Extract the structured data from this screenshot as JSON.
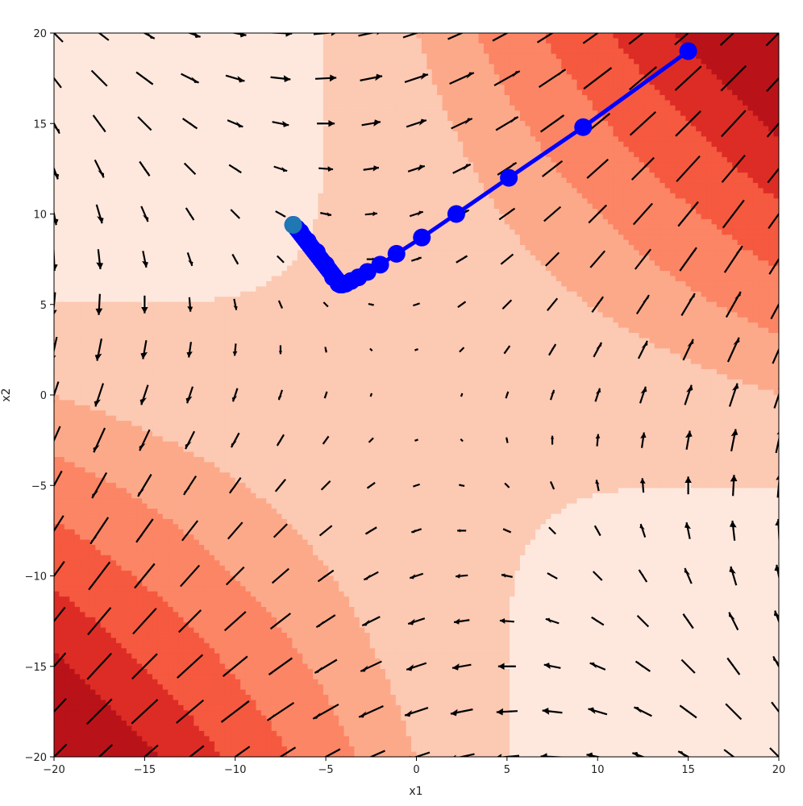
{
  "chart_data": {
    "type": "contour-quiver-trajectory",
    "xlabel": "x1",
    "ylabel": "x2",
    "xlim": [
      -20,
      20
    ],
    "ylim": [
      -20,
      20
    ],
    "xticks": [
      -20,
      -15,
      -10,
      -5,
      0,
      5,
      10,
      15,
      20
    ],
    "yticks": [
      -20,
      -15,
      -10,
      -5,
      0,
      5,
      10,
      15,
      20
    ],
    "xtick_labels": [
      "−20",
      "−15",
      "−10",
      "−5",
      "0",
      "5",
      "10",
      "15",
      "20"
    ],
    "ytick_labels": [
      "−20",
      "−15",
      "−10",
      "−5",
      "0",
      "5",
      "10",
      "15",
      "20"
    ],
    "grid": false,
    "colormap": "Reds",
    "contour_colors": [
      "#fee8de",
      "#fcc9b3",
      "#fca98a",
      "#fb8565",
      "#f5593f",
      "#dd2c25",
      "#b91319"
    ],
    "trajectory": {
      "color": "#0000ff",
      "start_marker_color": "#1f77b4",
      "points": [
        [
          15.0,
          19.0
        ],
        [
          9.2,
          14.8
        ],
        [
          5.1,
          12.0
        ],
        [
          2.2,
          10.0
        ],
        [
          0.3,
          8.7
        ],
        [
          -1.1,
          7.8
        ],
        [
          -2.0,
          7.2
        ],
        [
          -2.7,
          6.8
        ],
        [
          -3.2,
          6.5
        ],
        [
          -3.6,
          6.3
        ],
        [
          -3.9,
          6.15
        ],
        [
          -4.1,
          6.1
        ],
        [
          -4.3,
          6.15
        ],
        [
          -4.6,
          6.5
        ],
        [
          -5.0,
          7.2
        ],
        [
          -5.5,
          7.9
        ],
        [
          -6.0,
          8.5
        ],
        [
          -6.4,
          9.0
        ],
        [
          -6.8,
          9.4
        ]
      ]
    }
  }
}
